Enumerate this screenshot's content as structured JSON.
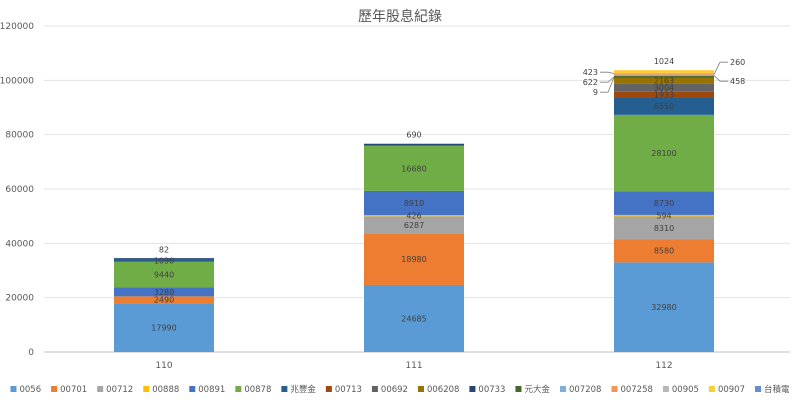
{
  "chart_data": {
    "type": "bar",
    "stacked": true,
    "title": "歷年股息紀錄",
    "categories": [
      "110",
      "111",
      "112"
    ],
    "ylim": [
      0,
      120000
    ],
    "yticks": [
      0,
      20000,
      40000,
      60000,
      80000,
      100000,
      120000
    ],
    "grid": true,
    "legend_position": "bottom",
    "series": [
      {
        "name": "0056",
        "color": "#5b9bd5",
        "values": [
          17990,
          24685,
          32980
        ]
      },
      {
        "name": "00701",
        "color": "#ed7d31",
        "values": [
          2490,
          18980,
          8580
        ]
      },
      {
        "name": "00712",
        "color": "#a5a5a5",
        "values": [
          0,
          6287,
          8310
        ]
      },
      {
        "name": "00888",
        "color": "#ffc000",
        "values": [
          0,
          426,
          594
        ]
      },
      {
        "name": "00891",
        "color": "#4472c4",
        "values": [
          3280,
          8910,
          8730
        ]
      },
      {
        "name": "00878",
        "color": "#70ad47",
        "values": [
          9440,
          16680,
          28100
        ]
      },
      {
        "name": "兆豐金",
        "color": "#255e91",
        "values": [
          1090,
          0,
          6550
        ]
      },
      {
        "name": "00713",
        "color": "#9e480e",
        "values": [
          0,
          0,
          1933
        ]
      },
      {
        "name": "00692",
        "color": "#636363",
        "values": [
          0,
          0,
          3004
        ]
      },
      {
        "name": "006208",
        "color": "#997300",
        "values": [
          0,
          0,
          2163
        ]
      },
      {
        "name": "00733",
        "color": "#264478",
        "values": [
          82,
          690,
          9
        ]
      },
      {
        "name": "元大金",
        "color": "#43682b",
        "values": [
          0,
          0,
          622
        ]
      },
      {
        "name": "007208",
        "color": "#7cafdd",
        "values": [
          0,
          0,
          458
        ]
      },
      {
        "name": "007258",
        "color": "#f1975a",
        "values": [
          0,
          0,
          260
        ]
      },
      {
        "name": "00905",
        "color": "#b7b7b7",
        "values": [
          0,
          0,
          423
        ]
      },
      {
        "name": "00907",
        "color": "#ffcd33",
        "values": [
          0,
          0,
          1024
        ]
      },
      {
        "name": "台積電",
        "color": "#698ed0",
        "values": [
          0,
          0,
          0
        ]
      }
    ],
    "data_labels": [
      {
        "category": 0,
        "series": 0,
        "text": "17990"
      },
      {
        "category": 0,
        "series": 1,
        "text": "2490"
      },
      {
        "category": 0,
        "series": 4,
        "text": "3280"
      },
      {
        "category": 0,
        "series": 5,
        "text": "9440"
      },
      {
        "category": 0,
        "series": 6,
        "text": "1090"
      },
      {
        "category": 0,
        "series": 10,
        "text": "82",
        "outside": "top"
      },
      {
        "category": 1,
        "series": 0,
        "text": "24685"
      },
      {
        "category": 1,
        "series": 1,
        "text": "18980"
      },
      {
        "category": 1,
        "series": 2,
        "text": "6287"
      },
      {
        "category": 1,
        "series": 3,
        "text": "426"
      },
      {
        "category": 1,
        "series": 4,
        "text": "8910"
      },
      {
        "category": 1,
        "series": 5,
        "text": "16680"
      },
      {
        "category": 1,
        "series": 10,
        "text": "690",
        "outside": "top"
      },
      {
        "category": 2,
        "series": 0,
        "text": "32980"
      },
      {
        "category": 2,
        "series": 1,
        "text": "8580"
      },
      {
        "category": 2,
        "series": 2,
        "text": "8310"
      },
      {
        "category": 2,
        "series": 3,
        "text": "594"
      },
      {
        "category": 2,
        "series": 4,
        "text": "8730"
      },
      {
        "category": 2,
        "series": 5,
        "text": "28100"
      },
      {
        "category": 2,
        "series": 6,
        "text": "6550"
      },
      {
        "category": 2,
        "series": 7,
        "text": "1933"
      },
      {
        "category": 2,
        "series": 8,
        "text": "3004"
      },
      {
        "category": 2,
        "series": 9,
        "text": "2163"
      },
      {
        "category": 2,
        "series": 10,
        "text": "9",
        "outside": "left"
      },
      {
        "category": 2,
        "series": 11,
        "text": "622",
        "outside": "left"
      },
      {
        "category": 2,
        "series": 12,
        "text": "458",
        "outside": "right"
      },
      {
        "category": 2,
        "series": 13,
        "text": "260",
        "outside": "right"
      },
      {
        "category": 2,
        "series": 14,
        "text": "423",
        "outside": "left"
      },
      {
        "category": 2,
        "series": 15,
        "text": "1024",
        "outside": "top"
      }
    ]
  }
}
